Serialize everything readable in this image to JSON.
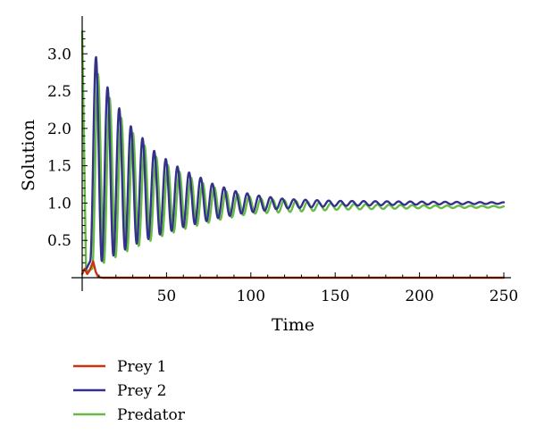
{
  "chart_data": {
    "type": "line",
    "title": "",
    "xlabel": "Time",
    "ylabel": "Solution",
    "xlim": [
      0,
      250
    ],
    "ylim": [
      0,
      3.35
    ],
    "x_ticks": [
      50,
      100,
      150,
      200,
      250
    ],
    "x_tick_labels": [
      "50",
      "100",
      "150",
      "200",
      "250"
    ],
    "y_ticks": [
      0.5,
      1.0,
      1.5,
      2.0,
      2.5,
      3.0
    ],
    "y_tick_labels": [
      "0.5",
      "1.0",
      "1.5",
      "2.0",
      "2.5",
      "3.0"
    ],
    "grid": false,
    "legend_position": "bottom-left",
    "series": [
      {
        "name": "Prey 1",
        "color": "#cc3311",
        "points": [
          [
            0,
            0.05
          ],
          [
            1.5,
            0.12
          ],
          [
            3,
            0.05
          ],
          [
            4.5,
            0.1
          ],
          [
            6.5,
            0.22
          ],
          [
            8,
            0.08
          ],
          [
            9.5,
            0.01
          ],
          [
            12,
            0.0
          ],
          [
            250,
            0.0
          ]
        ]
      },
      {
        "name": "Prey 2",
        "color": "#33318a",
        "shape": "damped_oscillation",
        "x_start": 2,
        "x_end": 250,
        "first_peak_x": 8.2,
        "first_peak_y": 2.96,
        "first_trough_x": 1.5,
        "first_trough_y": 0.1,
        "period": 6.9,
        "equilibrium": 1.0,
        "final_amplitude": 0.025,
        "decay_rate": 0.038,
        "peaks": [
          [
            8.2,
            2.96
          ],
          [
            15.1,
            2.55
          ],
          [
            22.0,
            2.27
          ],
          [
            28.9,
            2.03
          ],
          [
            35.8,
            1.87
          ],
          [
            42.7,
            1.7
          ],
          [
            49.6,
            1.59
          ],
          [
            56.5,
            1.49
          ],
          [
            63.4,
            1.41
          ],
          [
            70.3,
            1.34
          ],
          [
            77.2,
            1.26
          ],
          [
            84.1,
            1.21
          ],
          [
            91.0,
            1.16
          ],
          [
            97.9,
            1.13
          ],
          [
            104.8,
            1.1
          ],
          [
            111.7,
            1.08
          ],
          [
            118.6,
            1.06
          ],
          [
            125.5,
            1.05
          ],
          [
            150,
            1.03
          ],
          [
            200,
            1.02
          ],
          [
            250,
            1.01
          ]
        ],
        "troughs": [
          [
            12.0,
            0.22
          ],
          [
            18.9,
            0.3
          ],
          [
            25.8,
            0.38
          ],
          [
            32.7,
            0.46
          ],
          [
            39.6,
            0.52
          ],
          [
            46.5,
            0.58
          ],
          [
            53.4,
            0.63
          ],
          [
            60.3,
            0.68
          ],
          [
            67.2,
            0.72
          ],
          [
            74.1,
            0.76
          ],
          [
            81.0,
            0.8
          ],
          [
            87.9,
            0.83
          ],
          [
            94.8,
            0.86
          ],
          [
            101.7,
            0.88
          ],
          [
            108.6,
            0.9
          ],
          [
            115.5,
            0.92
          ],
          [
            150,
            0.96
          ],
          [
            200,
            0.98
          ],
          [
            250,
            0.99
          ]
        ]
      },
      {
        "name": "Predator",
        "color": "#66bb44",
        "shape": "damped_oscillation",
        "x_start": 0,
        "x_end": 250,
        "initial_y": 3.3,
        "first_trough_x": 2.3,
        "first_trough_y": 0.08,
        "first_peak_x": 9.4,
        "first_peak_y": 2.73,
        "period": 6.9,
        "equilibrium": 0.95,
        "final_amplitude": 0.022,
        "decay_rate": 0.038,
        "peaks": [
          [
            9.4,
            2.73
          ],
          [
            16.3,
            2.41
          ],
          [
            23.2,
            2.14
          ],
          [
            30.1,
            1.94
          ],
          [
            37.0,
            1.77
          ],
          [
            43.9,
            1.62
          ],
          [
            50.8,
            1.51
          ],
          [
            57.7,
            1.42
          ],
          [
            64.6,
            1.34
          ],
          [
            71.5,
            1.27
          ],
          [
            78.4,
            1.21
          ],
          [
            85.3,
            1.16
          ],
          [
            92.2,
            1.12
          ],
          [
            99.1,
            1.09
          ],
          [
            106.0,
            1.06
          ],
          [
            150,
            0.99
          ],
          [
            200,
            0.97
          ],
          [
            250,
            0.96
          ]
        ],
        "troughs": [
          [
            2.3,
            0.08
          ],
          [
            13.4,
            0.2
          ],
          [
            20.3,
            0.28
          ],
          [
            27.2,
            0.36
          ],
          [
            34.1,
            0.43
          ],
          [
            41.0,
            0.5
          ],
          [
            47.9,
            0.56
          ],
          [
            54.8,
            0.61
          ],
          [
            61.7,
            0.66
          ],
          [
            68.6,
            0.7
          ],
          [
            75.5,
            0.74
          ],
          [
            82.4,
            0.78
          ],
          [
            89.3,
            0.81
          ],
          [
            96.2,
            0.84
          ],
          [
            103.1,
            0.86
          ],
          [
            150,
            0.91
          ],
          [
            200,
            0.93
          ],
          [
            250,
            0.94
          ]
        ]
      }
    ]
  }
}
